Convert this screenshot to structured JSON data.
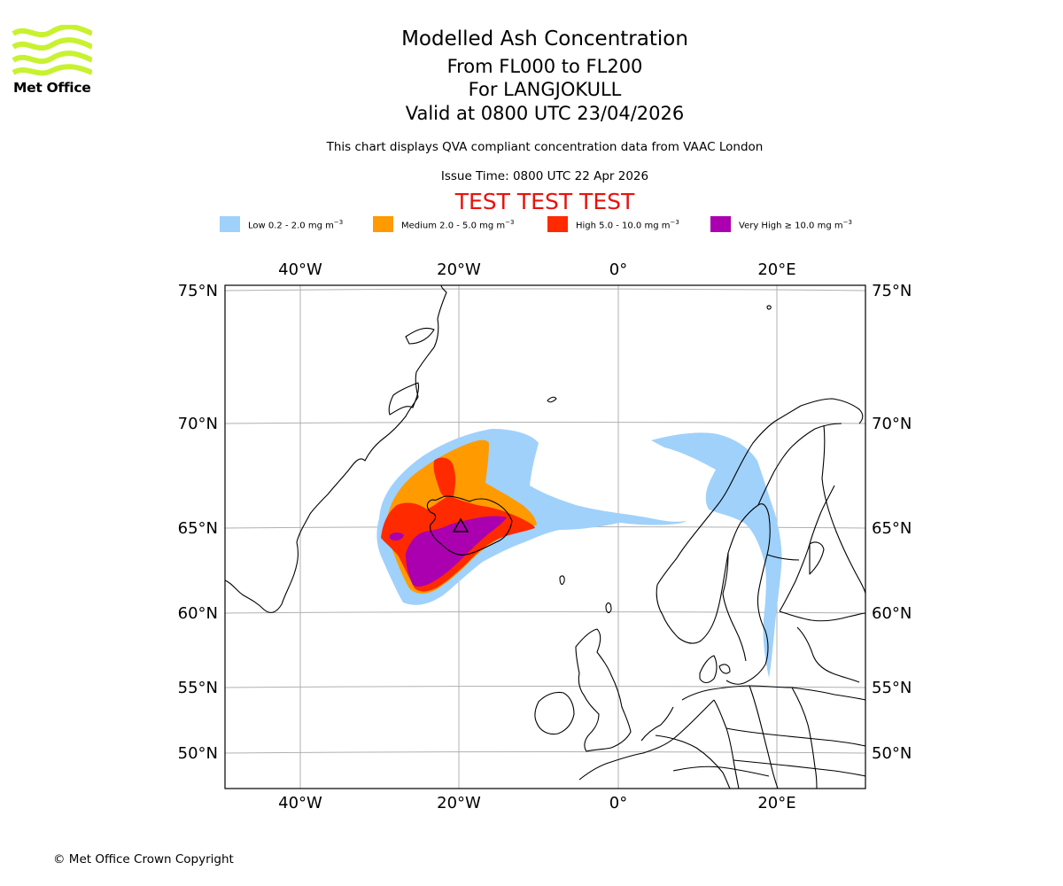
{
  "logo": {
    "name": "met-office-logo",
    "text": "Met Office"
  },
  "titles": {
    "main": "Modelled Ash Concentration",
    "levels": "From FL000 to FL200",
    "volcano": "For LANGJOKULL",
    "valid": "Valid at 0800 UTC 23/04/2026",
    "note": "This chart displays QVA compliant concentration data from VAAC London",
    "issue": "Issue Time: 0800 UTC 22 Apr 2026",
    "test": "TEST TEST TEST"
  },
  "legend": [
    {
      "label": "Low 0.2 - 2.0 mg m",
      "unit_exp": "−3",
      "color": "#9fd1fb"
    },
    {
      "label": "Medium 2.0 - 5.0 mg m",
      "unit_exp": "−3",
      "color": "#ff9a00"
    },
    {
      "label": "High 5.0 - 10.0 mg m",
      "unit_exp": "−3",
      "color": "#ff2a00"
    },
    {
      "label": "Very High  ≥  10.0 mg m",
      "unit_exp": "−3",
      "color": "#aa00b0"
    }
  ],
  "map": {
    "projection": "Lambert conformal",
    "lon_range": [
      -50,
      30
    ],
    "lat_range": [
      48,
      75
    ],
    "lat_labels": [
      "75°N",
      "70°N",
      "65°N",
      "60°N",
      "55°N",
      "50°N"
    ],
    "lon_labels": [
      "40°W",
      "20°W",
      "0°",
      "20°E"
    ],
    "volcano_marker": "triangle",
    "volcano_location": [
      -20.0,
      64.6
    ]
  },
  "footer": {
    "copyright": "© Met Office Crown Copyright"
  }
}
